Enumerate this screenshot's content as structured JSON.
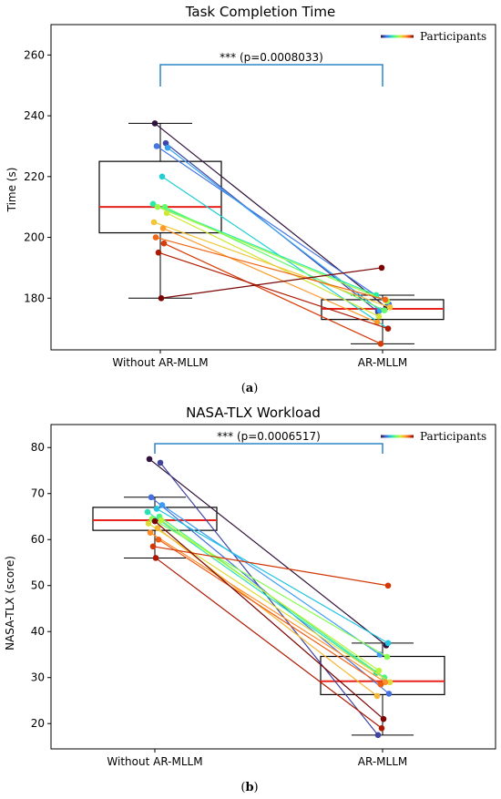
{
  "chart_data": [
    {
      "type": "box",
      "title": "Task Completion Time",
      "ylabel": "Time (s)",
      "xlabel": "",
      "caption_label": "a",
      "categories": [
        "Without AR-MLLM",
        "AR-MLLM"
      ],
      "ylim": [
        163,
        270
      ],
      "yticks": [
        180,
        200,
        220,
        240,
        260
      ],
      "legend": {
        "label": "Participants",
        "position": "top-right"
      },
      "significance": {
        "text": "*** (p=0.0008033)"
      },
      "boxes": [
        {
          "whisker_low": 180,
          "q1": 201.5,
          "median": 210,
          "q3": 225,
          "whisker_high": 237.5
        },
        {
          "whisker_low": 165,
          "q1": 173,
          "median": 176.5,
          "q3": 179.5,
          "whisker_high": 181
        }
      ],
      "participants": [
        {
          "before": 237.5,
          "after": 177
        },
        {
          "before": 231,
          "after": 175.5
        },
        {
          "before": 230,
          "after": 178
        },
        {
          "before": 229.5,
          "after": 176
        },
        {
          "before": 220,
          "after": 170
        },
        {
          "before": 211,
          "after": 181
        },
        {
          "before": 210,
          "after": 176
        },
        {
          "before": 210,
          "after": 179
        },
        {
          "before": 208,
          "after": 174
        },
        {
          "before": 205,
          "after": 177
        },
        {
          "before": 203,
          "after": 172
        },
        {
          "before": 200,
          "after": 179.5
        },
        {
          "before": 198,
          "after": 165
        },
        {
          "before": 195,
          "after": 170
        },
        {
          "before": 180,
          "after": 190
        }
      ]
    },
    {
      "type": "box",
      "title": "NASA-TLX Workload",
      "ylabel": "NASA-TLX (score)",
      "xlabel": "",
      "caption_label": "b",
      "categories": [
        "Without AR-MLLM",
        "AR-MLLM"
      ],
      "ylim": [
        14.5,
        85
      ],
      "yticks": [
        20,
        30,
        40,
        50,
        60,
        70,
        80
      ],
      "legend": {
        "label": "Participants",
        "position": "top-right"
      },
      "significance": {
        "text": "*** (p=0.0006517)"
      },
      "boxes": [
        {
          "whisker_low": 56,
          "q1": 62,
          "median": 64.2,
          "q3": 67,
          "whisker_high": 69.2
        },
        {
          "whisker_low": 17.5,
          "q1": 26.3,
          "median": 29.2,
          "q3": 34.6,
          "whisker_high": 37.5
        }
      ],
      "participants": [
        {
          "before": 77.5,
          "after": 37
        },
        {
          "before": 76.7,
          "after": 17.5
        },
        {
          "before": 69.2,
          "after": 26.5
        },
        {
          "before": 67.5,
          "after": 35
        },
        {
          "before": 66.7,
          "after": 37.5
        },
        {
          "before": 66,
          "after": 31
        },
        {
          "before": 65,
          "after": 30
        },
        {
          "before": 64.5,
          "after": 34.5
        },
        {
          "before": 64.2,
          "after": 31.5
        },
        {
          "before": 63.5,
          "after": 29
        },
        {
          "before": 62.5,
          "after": 26
        },
        {
          "before": 61.5,
          "after": 29
        },
        {
          "before": 60,
          "after": 28.5
        },
        {
          "before": 58.5,
          "after": 50
        },
        {
          "before": 56,
          "after": 19
        },
        {
          "before": 64,
          "after": 21
        }
      ]
    }
  ]
}
